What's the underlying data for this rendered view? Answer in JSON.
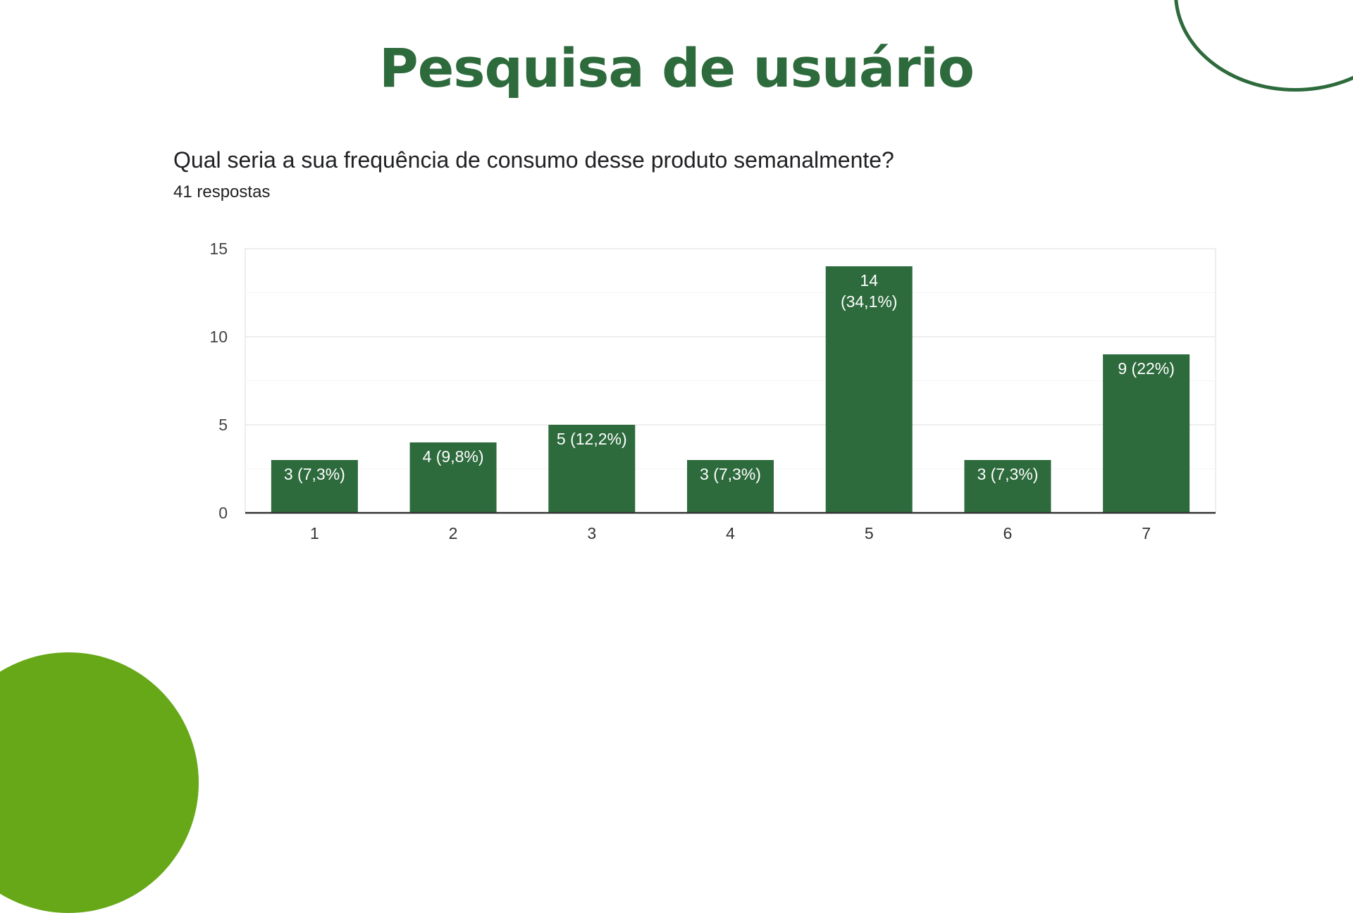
{
  "slide": {
    "title": "Pesquisa de usuário"
  },
  "form": {
    "question": "Qual seria a sua frequência de consumo desse produto semanalmente?",
    "response_count": "41 respostas"
  },
  "colors": {
    "title": "#2d6a3c",
    "bar": "#2d6a3c",
    "accent_green": "#66a818",
    "gridline": "#eeeeee"
  },
  "chart_data": {
    "type": "bar",
    "categories": [
      "1",
      "2",
      "3",
      "4",
      "5",
      "6",
      "7"
    ],
    "values": [
      3,
      4,
      5,
      3,
      14,
      3,
      9
    ],
    "labels": [
      [
        "3 (7,3%)"
      ],
      [
        "4 (9,8%)"
      ],
      [
        "5 (12,2%)"
      ],
      [
        "3 (7,3%)"
      ],
      [
        "14",
        "(34,1%)"
      ],
      [
        "3 (7,3%)"
      ],
      [
        "9 (22%)"
      ]
    ],
    "yticks": [
      0,
      5,
      10,
      15
    ],
    "ylim": [
      0,
      15
    ],
    "grid": true,
    "legend": "none"
  }
}
